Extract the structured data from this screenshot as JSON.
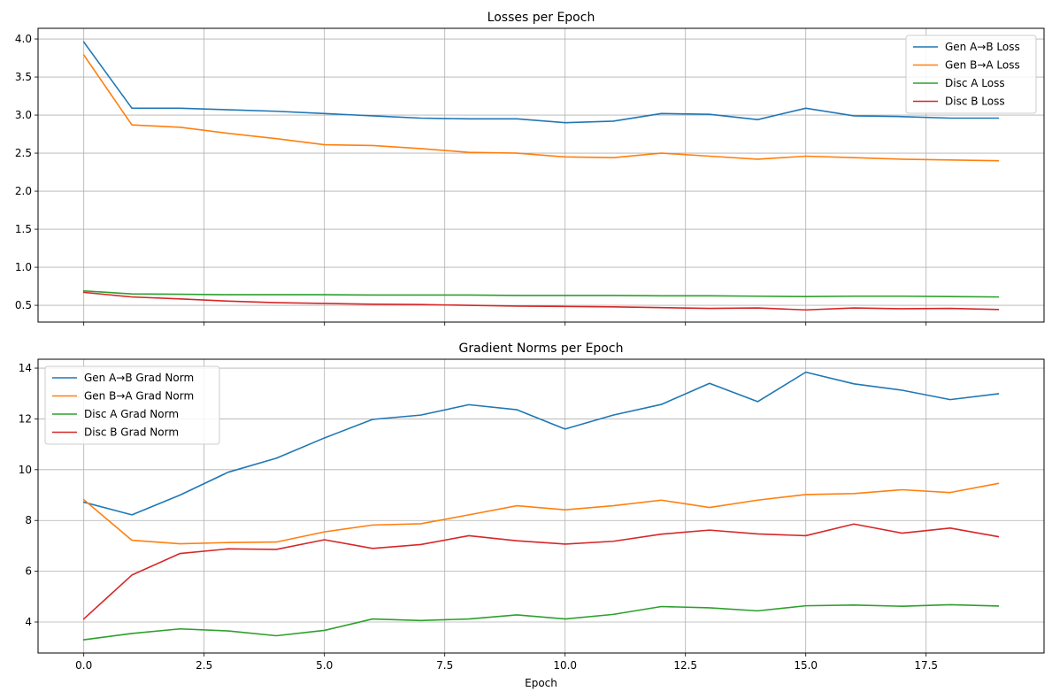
{
  "chart_data": [
    {
      "type": "line",
      "title": "Losses per Epoch",
      "xlabel": "",
      "ylabel": "",
      "x": [
        0,
        1,
        2,
        3,
        4,
        5,
        6,
        7,
        8,
        9,
        10,
        11,
        12,
        13,
        14,
        15,
        16,
        17,
        18,
        19
      ],
      "xlim": [
        -0.95,
        19.95
      ],
      "ylim": [
        0.28,
        4.14
      ],
      "xticks": [
        0.0,
        2.5,
        5.0,
        7.5,
        10.0,
        12.5,
        15.0,
        17.5
      ],
      "xtick_labels_visible": false,
      "yticks": [
        0.5,
        1.0,
        1.5,
        2.0,
        2.5,
        3.0,
        3.5,
        4.0
      ],
      "ytick_labels": [
        "0.5",
        "1.0",
        "1.5",
        "2.0",
        "2.5",
        "3.0",
        "3.5",
        "4.0"
      ],
      "grid": true,
      "legend_position": "upper right",
      "series": [
        {
          "name": "Gen A→B Loss",
          "color": "#1f77b4",
          "values": [
            3.96,
            3.09,
            3.09,
            3.07,
            3.05,
            3.02,
            2.99,
            2.96,
            2.95,
            2.95,
            2.9,
            2.92,
            3.02,
            3.01,
            2.94,
            3.09,
            2.99,
            2.98,
            2.96,
            2.96
          ]
        },
        {
          "name": "Gen B→A Loss",
          "color": "#ff7f0e",
          "values": [
            3.79,
            2.87,
            2.84,
            2.76,
            2.69,
            2.61,
            2.6,
            2.56,
            2.51,
            2.5,
            2.45,
            2.44,
            2.5,
            2.46,
            2.42,
            2.46,
            2.44,
            2.42,
            2.41,
            2.4
          ]
        },
        {
          "name": "Disc A Loss",
          "color": "#2ca02c",
          "values": [
            0.69,
            0.65,
            0.645,
            0.64,
            0.64,
            0.64,
            0.635,
            0.635,
            0.635,
            0.63,
            0.63,
            0.63,
            0.625,
            0.625,
            0.62,
            0.615,
            0.62,
            0.62,
            0.615,
            0.61
          ]
        },
        {
          "name": "Disc B Loss",
          "color": "#d62728",
          "values": [
            0.67,
            0.61,
            0.585,
            0.555,
            0.535,
            0.525,
            0.515,
            0.51,
            0.5,
            0.49,
            0.485,
            0.48,
            0.47,
            0.46,
            0.465,
            0.44,
            0.465,
            0.455,
            0.46,
            0.445
          ]
        }
      ]
    },
    {
      "type": "line",
      "title": "Gradient Norms per Epoch",
      "xlabel": "Epoch",
      "ylabel": "",
      "x": [
        0,
        1,
        2,
        3,
        4,
        5,
        6,
        7,
        8,
        9,
        10,
        11,
        12,
        13,
        14,
        15,
        16,
        17,
        18,
        19
      ],
      "xlim": [
        -0.95,
        19.95
      ],
      "ylim": [
        2.78,
        14.35
      ],
      "xticks": [
        0.0,
        2.5,
        5.0,
        7.5,
        10.0,
        12.5,
        15.0,
        17.5
      ],
      "xtick_labels": [
        "0.0",
        "2.5",
        "5.0",
        "7.5",
        "10.0",
        "12.5",
        "15.0",
        "17.5"
      ],
      "xtick_labels_visible": true,
      "yticks": [
        4,
        6,
        8,
        10,
        12,
        14
      ],
      "ytick_labels": [
        "4",
        "6",
        "8",
        "10",
        "12",
        "14"
      ],
      "grid": true,
      "legend_position": "upper left",
      "series": [
        {
          "name": "Gen A→B Grad Norm",
          "color": "#1f77b4",
          "values": [
            8.72,
            8.22,
            9.0,
            9.9,
            10.45,
            11.25,
            11.98,
            12.15,
            12.56,
            12.36,
            11.6,
            12.15,
            12.57,
            13.4,
            12.68,
            13.84,
            13.38,
            13.13,
            12.76,
            12.99
          ]
        },
        {
          "name": "Gen B→A Grad Norm",
          "color": "#ff7f0e",
          "values": [
            8.82,
            7.22,
            7.08,
            7.13,
            7.15,
            7.55,
            7.82,
            7.87,
            8.22,
            8.58,
            8.42,
            8.58,
            8.8,
            8.51,
            8.8,
            9.02,
            9.06,
            9.21,
            9.1,
            9.46
          ]
        },
        {
          "name": "Disc A Grad Norm",
          "color": "#2ca02c",
          "values": [
            3.3,
            3.55,
            3.73,
            3.65,
            3.46,
            3.67,
            4.12,
            4.06,
            4.12,
            4.28,
            4.12,
            4.3,
            4.61,
            4.56,
            4.44,
            4.64,
            4.67,
            4.62,
            4.68,
            4.63
          ]
        },
        {
          "name": "Disc B Grad Norm",
          "color": "#d62728",
          "values": [
            4.12,
            5.85,
            6.7,
            6.88,
            6.86,
            7.24,
            6.9,
            7.05,
            7.4,
            7.2,
            7.07,
            7.18,
            7.46,
            7.62,
            7.47,
            7.4,
            7.86,
            7.5,
            7.7,
            7.36
          ]
        }
      ]
    }
  ]
}
